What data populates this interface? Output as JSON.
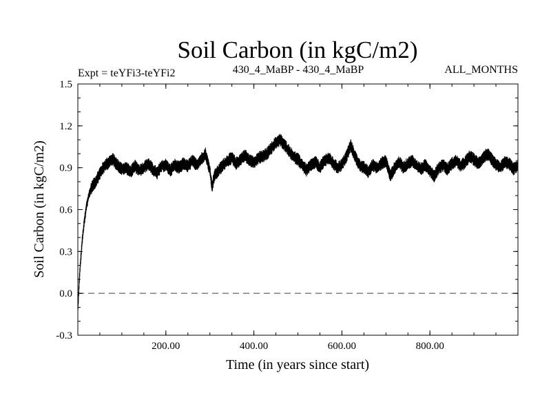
{
  "chart_data": {
    "type": "line",
    "title": "Soil Carbon (in kgC/m2)",
    "subtitle_left": "Expt = teYFi3-teYFi2",
    "subtitle_center": "430_4_MaBP - 430_4_MaBP",
    "subtitle_right": "ALL_MONTHS",
    "xlabel": "Time (in years since start)",
    "ylabel": "Soil Carbon (in kgC/m2)",
    "xlim": [
      0,
      1000
    ],
    "ylim": [
      -0.3,
      1.5
    ],
    "x_ticks": [
      "200.00",
      "400.00",
      "600.00",
      "800.00"
    ],
    "x_tick_values": [
      200,
      400,
      600,
      800
    ],
    "y_ticks": [
      "-0.3",
      "0.0",
      "0.3",
      "0.6",
      "0.9",
      "1.2",
      "1.5"
    ],
    "y_tick_values": [
      -0.3,
      0.0,
      0.3,
      0.6,
      0.9,
      1.2,
      1.5
    ],
    "reference_line": {
      "y": 0.0,
      "style": "dashed",
      "color": "#888888"
    },
    "line_color": "#000000",
    "band_half_width": 0.045,
    "series": [
      {
        "x": [
          0,
          3,
          6,
          10,
          15,
          20,
          25,
          30,
          40,
          50,
          60,
          70,
          80,
          90,
          100,
          110,
          120,
          130,
          140,
          150,
          160,
          170,
          180,
          190,
          200,
          210,
          220,
          230,
          240,
          250,
          260,
          270,
          280,
          290,
          300,
          305,
          310,
          320,
          330,
          340,
          350,
          360,
          370,
          380,
          390,
          400,
          410,
          420,
          430,
          440,
          450,
          460,
          470,
          480,
          490,
          500,
          510,
          520,
          530,
          540,
          550,
          560,
          570,
          580,
          590,
          600,
          610,
          620,
          630,
          640,
          650,
          660,
          670,
          680,
          690,
          700,
          710,
          720,
          730,
          740,
          750,
          760,
          770,
          780,
          790,
          800,
          810,
          820,
          830,
          840,
          850,
          860,
          870,
          880,
          890,
          900,
          910,
          920,
          930,
          940,
          950,
          960,
          970,
          980,
          990,
          1000
        ],
        "y": [
          -0.12,
          0.08,
          0.22,
          0.38,
          0.52,
          0.63,
          0.7,
          0.75,
          0.8,
          0.86,
          0.91,
          0.94,
          0.96,
          0.92,
          0.89,
          0.9,
          0.87,
          0.91,
          0.88,
          0.9,
          0.93,
          0.89,
          0.86,
          0.91,
          0.92,
          0.88,
          0.92,
          0.9,
          0.93,
          0.91,
          0.95,
          0.92,
          0.96,
          1.0,
          0.88,
          0.76,
          0.84,
          0.88,
          0.92,
          0.95,
          0.97,
          0.93,
          0.96,
          0.99,
          0.95,
          0.94,
          0.97,
          0.98,
          1.0,
          1.04,
          1.08,
          1.1,
          1.06,
          1.02,
          0.98,
          0.96,
          0.92,
          0.88,
          0.92,
          0.94,
          0.9,
          0.95,
          0.97,
          0.93,
          0.9,
          0.92,
          0.98,
          1.06,
          0.98,
          0.92,
          0.9,
          0.87,
          0.92,
          0.9,
          0.93,
          0.95,
          0.84,
          0.9,
          0.94,
          0.9,
          0.93,
          0.95,
          0.91,
          0.89,
          0.92,
          0.88,
          0.84,
          0.9,
          0.92,
          0.89,
          0.93,
          0.95,
          0.91,
          0.94,
          0.98,
          0.96,
          0.93,
          0.97,
          1.0,
          0.96,
          0.92,
          0.9,
          0.94,
          0.93,
          0.89,
          0.92
        ]
      }
    ],
    "grid": false,
    "legend": "none"
  }
}
